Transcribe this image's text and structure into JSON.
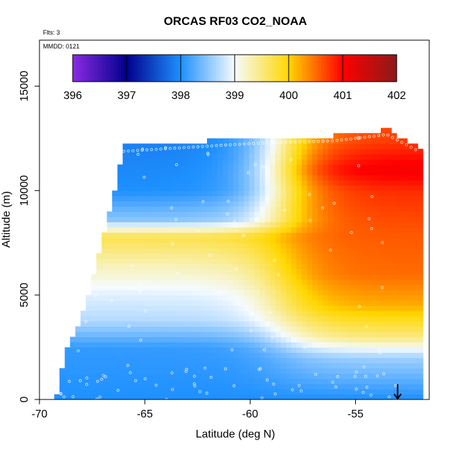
{
  "chart_data": {
    "type": "heatmap",
    "title": "ORCAS RF03 CO2_NOAA",
    "annotations": [
      "Flts: 3",
      "MMDD: 0121"
    ],
    "xlabel": "Latitude (deg N)",
    "ylabel": "Altitude (m)",
    "xlim": [
      -70,
      -51.5
    ],
    "ylim": [
      0,
      17200
    ],
    "x_ticks": [
      -70,
      -65,
      -60,
      -55
    ],
    "x_tick_labels": [
      "-70",
      "-65",
      "-60",
      "-55"
    ],
    "y_ticks": [
      0,
      5000,
      10000,
      15000
    ],
    "y_tick_labels": [
      "0",
      "5000",
      "10000",
      "15000"
    ],
    "colorbar": {
      "min": 396,
      "max": 402,
      "ticks": [
        396,
        397,
        398,
        399,
        400,
        401,
        402
      ],
      "tick_labels": [
        "396",
        "397",
        "398",
        "399",
        "400",
        "401",
        "402"
      ],
      "colors": [
        "#8a2be2",
        "#00008b",
        "#1e90ff",
        "#f5fbff",
        "#ffd700",
        "#ff0000",
        "#8b1a1a"
      ]
    },
    "curtain_extent": {
      "altitude_max_by_latitude": [
        {
          "lat": -69.2,
          "alt": 0
        },
        {
          "lat": -68.8,
          "alt": 2000
        },
        {
          "lat": -68.2,
          "alt": 3200
        },
        {
          "lat": -67.5,
          "alt": 5500
        },
        {
          "lat": -66.8,
          "alt": 8500
        },
        {
          "lat": -66.5,
          "alt": 9500
        },
        {
          "lat": -66,
          "alt": 12000
        },
        {
          "lat": -59.5,
          "alt": 12400
        },
        {
          "lat": -56,
          "alt": 12500
        },
        {
          "lat": -53.5,
          "alt": 12800
        },
        {
          "lat": -52,
          "alt": 12000
        }
      ]
    },
    "co2_profile_west": [
      {
        "alt": 0,
        "co2": 398.0
      },
      {
        "alt": 2500,
        "co2": 398.1
      },
      {
        "alt": 3800,
        "co2": 398.7
      },
      {
        "alt": 5000,
        "co2": 398.9
      },
      {
        "alt": 6500,
        "co2": 399.3
      },
      {
        "alt": 7800,
        "co2": 399.7
      },
      {
        "alt": 8600,
        "co2": 398.5
      },
      {
        "alt": 10000,
        "co2": 398.0
      },
      {
        "alt": 12000,
        "co2": 397.9
      }
    ],
    "co2_profile_east": [
      {
        "alt": 0,
        "co2": 398.0
      },
      {
        "alt": 2000,
        "co2": 398.6
      },
      {
        "alt": 3000,
        "co2": 399.5
      },
      {
        "alt": 4500,
        "co2": 400.2
      },
      {
        "alt": 6000,
        "co2": 400.5
      },
      {
        "alt": 8000,
        "co2": 400.6
      },
      {
        "alt": 10000,
        "co2": 400.8
      },
      {
        "alt": 11000,
        "co2": 401.1
      },
      {
        "alt": 12500,
        "co2": 400.7
      }
    ],
    "transition_latitude": -58.5,
    "arrow_marker": {
      "lat": -53
    }
  }
}
